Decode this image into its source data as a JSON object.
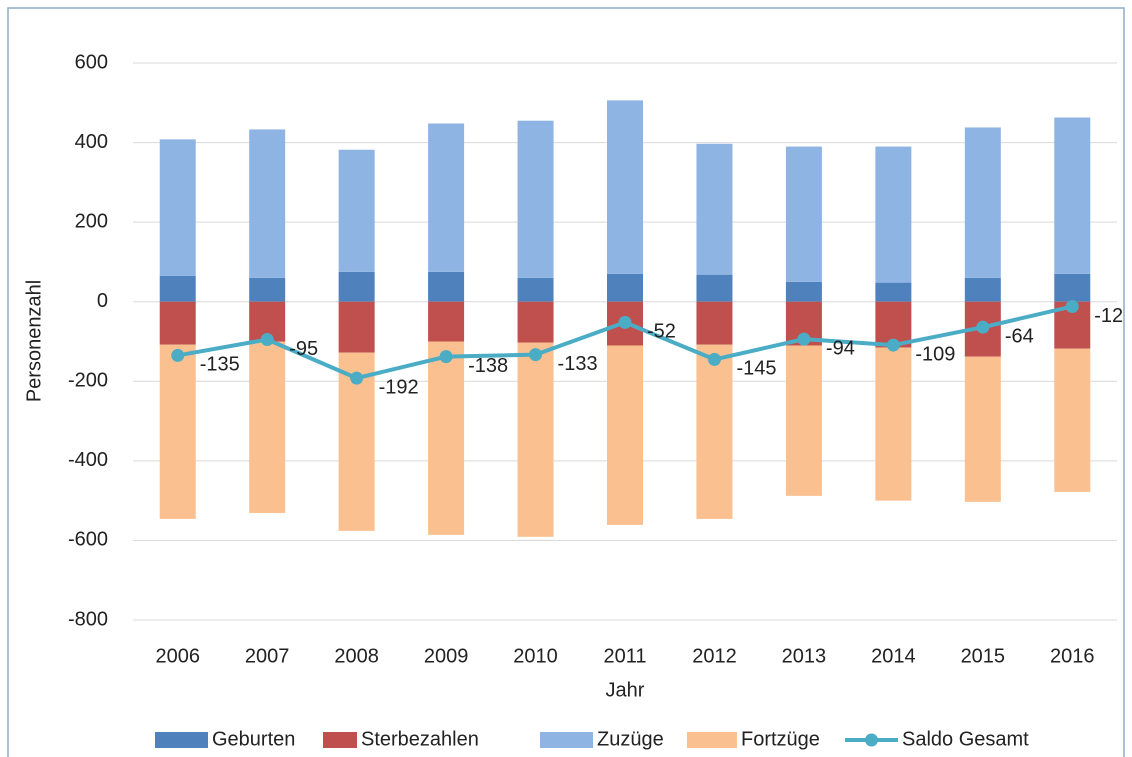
{
  "chart_data": {
    "type": "bar-line",
    "x_label": "Jahr",
    "y_label": "Personenzahl",
    "categories": [
      "2006",
      "2007",
      "2008",
      "2009",
      "2010",
      "2011",
      "2012",
      "2013",
      "2014",
      "2015",
      "2016"
    ],
    "series": [
      {
        "name": "Geburten",
        "color": "#4f81bd",
        "type": "bar",
        "values": [
          65,
          60,
          75,
          75,
          60,
          70,
          68,
          50,
          48,
          60,
          70
        ]
      },
      {
        "name": "Sterbezahlen",
        "color": "#c0504d",
        "type": "bar",
        "values": [
          -108,
          -100,
          -128,
          -100,
          -103,
          -110,
          -108,
          -110,
          -115,
          -138,
          -118
        ]
      },
      {
        "name": "Zuzüge",
        "color": "#8eb4e3",
        "type": "bar",
        "values": [
          343,
          373,
          307,
          373,
          395,
          436,
          329,
          340,
          342,
          378,
          393
        ]
      },
      {
        "name": "Fortzüge",
        "color": "#fac090",
        "type": "bar",
        "values": [
          -438,
          -431,
          -448,
          -486,
          -488,
          -451,
          -438,
          -378,
          -385,
          -365,
          -360
        ]
      },
      {
        "name": "Saldo Gesamt",
        "color": "#4bacc6",
        "type": "line",
        "values": [
          -135,
          -95,
          -192,
          -138,
          -133,
          -52,
          -145,
          -94,
          -109,
          -64,
          -12
        ]
      }
    ],
    "ylim": [
      -800,
      600
    ],
    "yticks": [
      -800,
      -600,
      -400,
      -200,
      0,
      200,
      400,
      600
    ],
    "grid": true,
    "legend": "bottom"
  }
}
